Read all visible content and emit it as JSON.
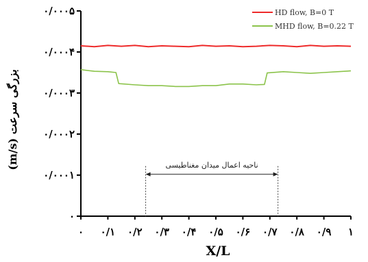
{
  "chart_data": {
    "type": "line",
    "xlabel": "X/L",
    "ylabel": "بزرگی سرعت (m/s)",
    "xlim": [
      0,
      1
    ],
    "ylim": [
      0,
      0.0005
    ],
    "x_ticks": [
      {
        "value": 0,
        "label": "۰"
      },
      {
        "value": 0.1,
        "label": "۰/۱"
      },
      {
        "value": 0.2,
        "label": "۰/۲"
      },
      {
        "value": 0.3,
        "label": "۰/۳"
      },
      {
        "value": 0.4,
        "label": "۰/۴"
      },
      {
        "value": 0.5,
        "label": "۰/۵"
      },
      {
        "value": 0.6,
        "label": "۰/۶"
      },
      {
        "value": 0.7,
        "label": "۰/۷"
      },
      {
        "value": 0.8,
        "label": "۰/۸"
      },
      {
        "value": 0.9,
        "label": "۰/۹"
      },
      {
        "value": 1.0,
        "label": "۱"
      }
    ],
    "y_ticks": [
      {
        "value": 0,
        "label": "۰"
      },
      {
        "value": 0.0001,
        "label": "۰/۰۰۰۱"
      },
      {
        "value": 0.0002,
        "label": "۰/۰۰۰۲"
      },
      {
        "value": 0.0003,
        "label": "۰/۰۰۰۳"
      },
      {
        "value": 0.0004,
        "label": "۰/۰۰۰۴"
      },
      {
        "value": 0.0005,
        "label": "۰/۰۰۰۵"
      }
    ],
    "grid": false,
    "legend_position": "top-right",
    "series": [
      {
        "name": "HD flow, B=0 T",
        "color": "#ee2a2a",
        "x": [
          0,
          0.05,
          0.1,
          0.15,
          0.2,
          0.25,
          0.3,
          0.35,
          0.4,
          0.45,
          0.5,
          0.55,
          0.6,
          0.65,
          0.7,
          0.75,
          0.8,
          0.85,
          0.9,
          0.95,
          1.0
        ],
        "y": [
          0.000415,
          0.000413,
          0.000416,
          0.000414,
          0.000416,
          0.000413,
          0.000415,
          0.000414,
          0.000413,
          0.000416,
          0.000414,
          0.000415,
          0.000413,
          0.000414,
          0.000416,
          0.000415,
          0.000413,
          0.000416,
          0.000414,
          0.000415,
          0.000414
        ]
      },
      {
        "name": "MHD flow, B=0.22 T",
        "color": "#8bc34a",
        "x": [
          0,
          0.05,
          0.1,
          0.13,
          0.14,
          0.2,
          0.25,
          0.3,
          0.35,
          0.4,
          0.45,
          0.5,
          0.55,
          0.6,
          0.65,
          0.68,
          0.69,
          0.75,
          0.8,
          0.85,
          0.9,
          0.95,
          1.0
        ],
        "y": [
          0.000357,
          0.000353,
          0.000352,
          0.00035,
          0.000323,
          0.00032,
          0.000318,
          0.000318,
          0.000316,
          0.000316,
          0.000318,
          0.000318,
          0.000322,
          0.000322,
          0.00032,
          0.000321,
          0.000349,
          0.000352,
          0.00035,
          0.000348,
          0.00035,
          0.000352,
          0.000354
        ]
      }
    ],
    "annotation": {
      "text": "ناحیه اعمال میدان مغناطیسی",
      "x_start": 0.24,
      "x_end": 0.73,
      "y_level": 0.000102
    }
  }
}
